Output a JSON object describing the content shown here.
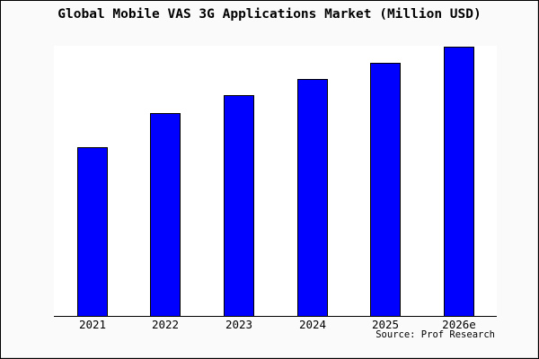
{
  "window": {
    "title": "Global Mobile VAS 3G Applications Market (Million USD)"
  },
  "source_credit": "Source: Prof Research",
  "colors": {
    "background": "#FAFAFA",
    "plot_background": "#FFFFFF",
    "bar_fill": "#0000FF",
    "bar_border": "#000000",
    "axis": "#000000",
    "text": "#000000"
  },
  "chart_data": {
    "type": "bar",
    "title": "Global Mobile VAS 3G Applications Market (Million USD)",
    "categories": [
      "2021",
      "2022",
      "2023",
      "2024",
      "2025",
      "2026e"
    ],
    "values": [
      62.7,
      75.3,
      82.0,
      88.0,
      94.0,
      100.0
    ],
    "values_note": "relative scale estimated from bar heights; chart shows no y-axis tick labels; 2026e = 100",
    "xlabel": "",
    "ylabel": "",
    "ylim": [
      0,
      100
    ],
    "grid": false,
    "legend": false,
    "y_axis_visible": false,
    "source": "Source: Prof Research"
  }
}
